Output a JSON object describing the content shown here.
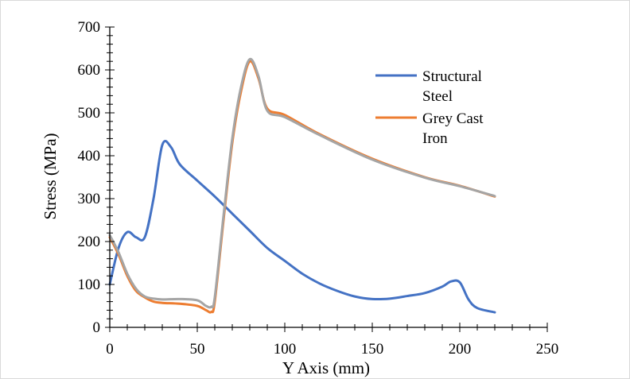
{
  "chart_data": {
    "type": "line",
    "xlabel": "Y Axis (mm)",
    "ylabel": "Stress (MPa)",
    "xlim": [
      0,
      250
    ],
    "ylim": [
      0,
      700
    ],
    "xticks": [
      0,
      50,
      100,
      150,
      200,
      250
    ],
    "yticks": [
      0,
      100,
      200,
      300,
      400,
      500,
      600,
      700
    ],
    "grid": false,
    "legend_position": "top-right",
    "series": [
      {
        "name": "Structural Steel",
        "color": "#4472C4",
        "x": [
          0,
          5,
          10,
          15,
          20,
          25,
          30,
          35,
          40,
          50,
          60,
          70,
          80,
          90,
          100,
          110,
          120,
          130,
          140,
          150,
          160,
          170,
          180,
          190,
          195,
          200,
          205,
          210,
          220
        ],
        "y": [
          100,
          185,
          222,
          210,
          210,
          300,
          425,
          420,
          380,
          342,
          305,
          265,
          225,
          185,
          155,
          125,
          102,
          85,
          72,
          66,
          67,
          73,
          80,
          95,
          107,
          105,
          65,
          45,
          35
        ]
      },
      {
        "name": "Grey Cast Iron",
        "color": "#ED7D31",
        "x": [
          0,
          5,
          10,
          15,
          20,
          25,
          30,
          40,
          50,
          55,
          58,
          60,
          65,
          70,
          75,
          80,
          85,
          90,
          100,
          120,
          150,
          180,
          200,
          220
        ],
        "y": [
          210,
          170,
          120,
          85,
          70,
          60,
          57,
          55,
          50,
          40,
          36,
          60,
          250,
          430,
          550,
          620,
          580,
          510,
          495,
          450,
          393,
          350,
          330,
          305
        ]
      },
      {
        "name": "",
        "color": "#A5A5A5",
        "x": [
          0,
          5,
          10,
          15,
          20,
          25,
          30,
          40,
          50,
          55,
          58,
          60,
          65,
          70,
          75,
          80,
          85,
          90,
          100,
          120,
          150,
          180,
          200,
          220
        ],
        "y": [
          215,
          175,
          125,
          90,
          72,
          67,
          65,
          66,
          63,
          50,
          48,
          70,
          260,
          440,
          560,
          625,
          585,
          505,
          490,
          448,
          391,
          349,
          329,
          306
        ]
      }
    ]
  }
}
